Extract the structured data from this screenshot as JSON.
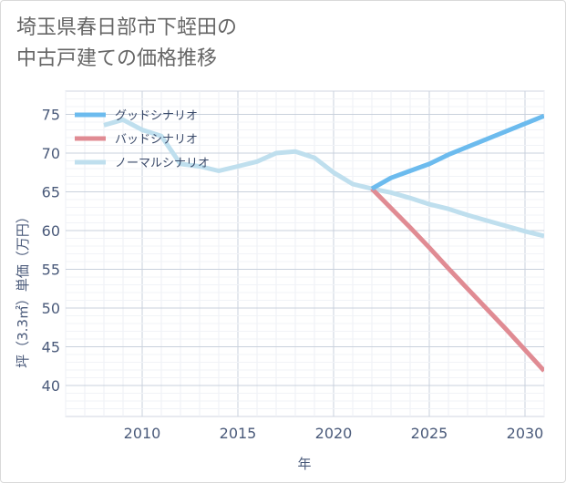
{
  "chart_data": {
    "type": "line",
    "title_lines": [
      "埼玉県春日部市下蛭田の",
      "中古戸建ての価格推移"
    ],
    "xlabel": "年",
    "ylabel": "坪（3.3㎡）単価（万円）",
    "xlim": [
      2006,
      2031
    ],
    "ylim": [
      36,
      78
    ],
    "xticks": [
      2010,
      2015,
      2020,
      2025,
      2030
    ],
    "yticks": [
      40,
      45,
      50,
      55,
      60,
      65,
      70,
      75
    ],
    "legend_position": "top-left",
    "series": [
      {
        "name": "グッドシナリオ",
        "color": "#6cbbee",
        "points": [
          [
            2022,
            65.4
          ],
          [
            2023,
            66.8
          ],
          [
            2024,
            67.7
          ],
          [
            2025,
            68.6
          ],
          [
            2026,
            69.8
          ],
          [
            2027,
            70.8
          ],
          [
            2028,
            71.8
          ],
          [
            2029,
            72.8
          ],
          [
            2030,
            73.8
          ],
          [
            2031,
            74.8
          ]
        ]
      },
      {
        "name": "バッドシナリオ",
        "color": "#e08b93",
        "points": [
          [
            2022,
            65.4
          ],
          [
            2023,
            62.9
          ],
          [
            2024,
            60.4
          ],
          [
            2025,
            57.8
          ],
          [
            2026,
            55.1
          ],
          [
            2027,
            52.5
          ],
          [
            2028,
            49.9
          ],
          [
            2029,
            47.3
          ],
          [
            2030,
            44.6
          ],
          [
            2031,
            41.9
          ]
        ]
      },
      {
        "name": "ノーマルシナリオ",
        "color": "#bfdfee",
        "points": [
          [
            2008,
            73.6
          ],
          [
            2009,
            74.3
          ],
          [
            2010,
            73.0
          ],
          [
            2011,
            72.2
          ],
          [
            2012,
            68.6
          ],
          [
            2013,
            68.3
          ],
          [
            2014,
            67.7
          ],
          [
            2015,
            68.3
          ],
          [
            2016,
            68.9
          ],
          [
            2017,
            70.0
          ],
          [
            2018,
            70.2
          ],
          [
            2019,
            69.4
          ],
          [
            2020,
            67.5
          ],
          [
            2021,
            66.0
          ],
          [
            2022,
            65.4
          ],
          [
            2023,
            64.9
          ],
          [
            2024,
            64.2
          ],
          [
            2025,
            63.4
          ],
          [
            2026,
            62.8
          ],
          [
            2027,
            62.0
          ],
          [
            2028,
            61.3
          ],
          [
            2029,
            60.6
          ],
          [
            2030,
            59.9
          ],
          [
            2031,
            59.3
          ]
        ]
      }
    ]
  }
}
